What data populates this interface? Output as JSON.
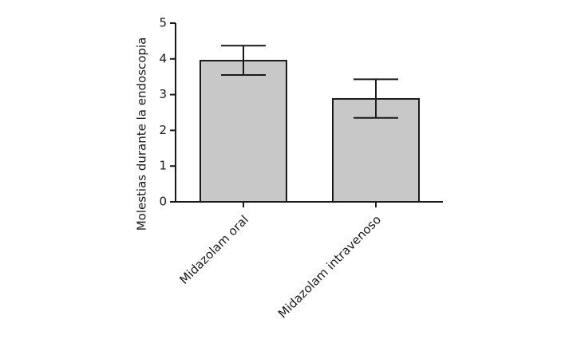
{
  "chart_data": {
    "type": "bar",
    "ylabel": "Molestias durante la endoscopia",
    "xlabel": "",
    "categories": [
      "Midazolam oral",
      "Midazolam intravenoso"
    ],
    "values": [
      3.95,
      2.88
    ],
    "error_upper": [
      4.37,
      3.43
    ],
    "error_lower": [
      3.55,
      2.35
    ],
    "ylim": [
      0,
      5
    ],
    "yticks": [
      "0",
      "1",
      "2",
      "3",
      "4",
      "5"
    ],
    "bar_color": "#c8c8c8",
    "edge_color": "#1a1a1a",
    "grid": false,
    "legend": "none"
  }
}
